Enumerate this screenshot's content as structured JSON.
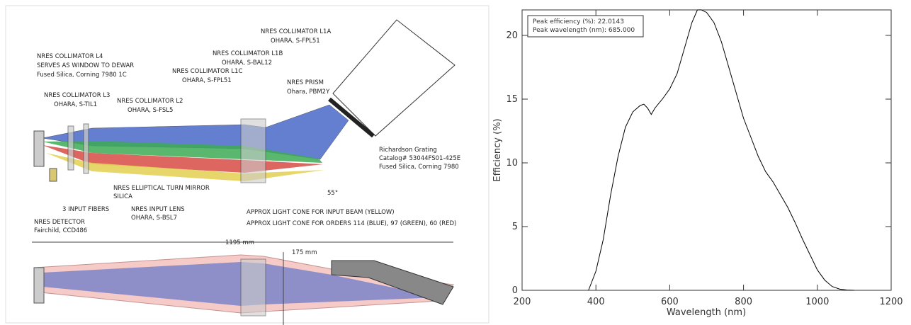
{
  "diagram": {
    "labels": [
      [
        "NRES COLLIMATOR L4",
        "SERVES AS WINDOW TO DEWAR",
        "Fused Silica, Corning 7980 1C"
      ],
      [
        "NRES COLLIMATOR L3",
        "OHARA, S-TIL1"
      ],
      [
        "NRES COLLIMATOR L2",
        "OHARA, S-FSL5"
      ],
      [
        "NRES COLLIMATOR L1C",
        "OHARA, S-FPL51"
      ],
      [
        "NRES COLLIMATOR L1B",
        "OHARA, S-BAL12"
      ],
      [
        "NRES COLLIMATOR L1A",
        "OHARA, S-FPL51"
      ],
      [
        "NRES PRISM",
        "Ohara, PBM2Y"
      ],
      [
        "Richardson Grating",
        "Catalog# 53044FS01-425E",
        "Fused Silica, Corning 7980"
      ],
      [
        "55°"
      ],
      [
        "NRES ELLIPTICAL TURN MIRROR",
        "SILICA"
      ],
      [
        "3 INPUT FIBERS"
      ],
      [
        "NRES INPUT LENS",
        "OHARA, S-BSL7"
      ],
      [
        "APPROX LIGHT CONE FOR INPUT BEAM (YELLOW)"
      ],
      [
        "APPROX LIGHT CONE FOR ORDERS 114 (BLUE),  97 (GREEN), 60 (RED)"
      ],
      [
        "NRES DETECTOR",
        "Fairchild, CCD486"
      ],
      [
        "1195 mm"
      ],
      [
        "175 mm"
      ]
    ]
  },
  "chart_data": {
    "type": "line",
    "x_label": "Wavelength (nm)",
    "y_label": "Efficiency (%)",
    "annotations": [
      "Peak efficiency (%): 22.0143",
      "Peak wavelength (nm): 685.000"
    ],
    "x": [
      380,
      400,
      420,
      440,
      460,
      480,
      500,
      520,
      530,
      540,
      550,
      560,
      580,
      600,
      620,
      640,
      660,
      675,
      685,
      700,
      720,
      740,
      760,
      780,
      800,
      820,
      840,
      860,
      880,
      900,
      920,
      940,
      960,
      980,
      1000,
      1020,
      1040,
      1060,
      1080,
      1100
    ],
    "values": [
      0,
      1.5,
      4,
      7.5,
      10.5,
      12.8,
      14,
      14.5,
      14.6,
      14.3,
      13.8,
      14.3,
      15,
      15.8,
      17,
      19,
      21,
      22,
      22.01,
      21.8,
      21,
      19.5,
      17.5,
      15.5,
      13.5,
      12,
      10.5,
      9.3,
      8.5,
      7.5,
      6.5,
      5.3,
      4,
      2.8,
      1.6,
      0.8,
      0.3,
      0.1,
      0.02,
      0
    ],
    "color": "#000000",
    "xlim": [
      200,
      1200
    ],
    "xticks": [
      200,
      400,
      600,
      800,
      1000,
      1200
    ],
    "ylim": [
      0,
      22
    ],
    "yticks": [
      0,
      5,
      10,
      15,
      20
    ]
  }
}
